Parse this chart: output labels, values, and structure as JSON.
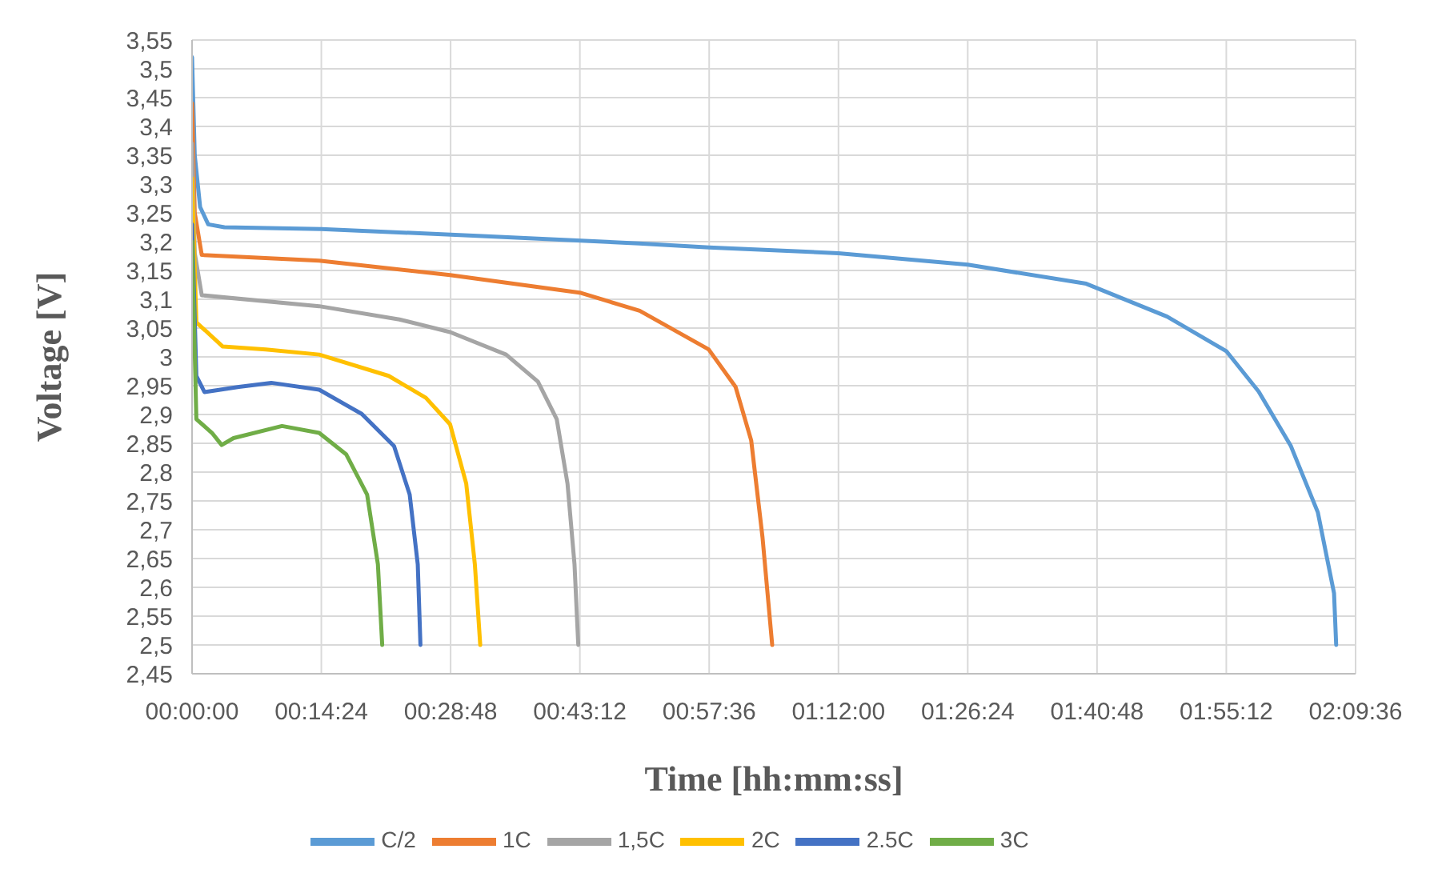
{
  "chart_data": {
    "type": "line",
    "xlabel": "Time [hh:mm:ss]",
    "ylabel": "Voltage [V]",
    "xlim": [
      0,
      2.16
    ],
    "xticks": [
      {
        "value": 0,
        "label": "00:00:00"
      },
      {
        "value": 0.24,
        "label": "00:14:24"
      },
      {
        "value": 0.48,
        "label": "00:28:48"
      },
      {
        "value": 0.72,
        "label": "00:43:12"
      },
      {
        "value": 0.96,
        "label": "00:57:36"
      },
      {
        "value": 1.2,
        "label": "01:12:00"
      },
      {
        "value": 1.44,
        "label": "01:26:24"
      },
      {
        "value": 1.68,
        "label": "01:40:48"
      },
      {
        "value": 1.92,
        "label": "01:55:12"
      },
      {
        "value": 2.16,
        "label": "02:09:36"
      }
    ],
    "ylim": [
      2.45,
      3.55
    ],
    "yticks": [
      {
        "value": 2.45,
        "label": "2,45"
      },
      {
        "value": 2.5,
        "label": "2,5"
      },
      {
        "value": 2.55,
        "label": "2,55"
      },
      {
        "value": 2.6,
        "label": "2,6"
      },
      {
        "value": 2.65,
        "label": "2,65"
      },
      {
        "value": 2.7,
        "label": "2,7"
      },
      {
        "value": 2.75,
        "label": "2,75"
      },
      {
        "value": 2.8,
        "label": "2,8"
      },
      {
        "value": 2.85,
        "label": "2,85"
      },
      {
        "value": 2.9,
        "label": "2,9"
      },
      {
        "value": 2.95,
        "label": "2,95"
      },
      {
        "value": 3,
        "label": "3"
      },
      {
        "value": 3.05,
        "label": "3,05"
      },
      {
        "value": 3.1,
        "label": "3,1"
      },
      {
        "value": 3.15,
        "label": "3,15"
      },
      {
        "value": 3.2,
        "label": "3,2"
      },
      {
        "value": 3.25,
        "label": "3,25"
      },
      {
        "value": 3.3,
        "label": "3,3"
      },
      {
        "value": 3.35,
        "label": "3,35"
      },
      {
        "value": 3.4,
        "label": "3,4"
      },
      {
        "value": 3.45,
        "label": "3,45"
      },
      {
        "value": 3.5,
        "label": "3,5"
      },
      {
        "value": 3.55,
        "label": "3,55"
      }
    ],
    "grid": true,
    "legend": "bottom",
    "marker": "none",
    "line_style": "solid",
    "series": [
      {
        "name": "C/2",
        "color": "#5b9bd5",
        "x": [
          0,
          0.005,
          0.015,
          0.03,
          0.06,
          0.24,
          0.53,
          0.83,
          0.96,
          1.2,
          1.44,
          1.66,
          1.81,
          1.92,
          1.98,
          2.04,
          2.09,
          2.12,
          2.124
        ],
        "values": [
          3.52,
          3.35,
          3.26,
          3.23,
          3.225,
          3.222,
          3.21,
          3.197,
          3.19,
          3.18,
          3.16,
          3.127,
          3.07,
          3.01,
          2.94,
          2.845,
          2.73,
          2.59,
          2.5
        ]
      },
      {
        "name": "1C",
        "color": "#ed7d31",
        "x": [
          0,
          0.005,
          0.018,
          0.236,
          0.479,
          0.722,
          0.831,
          0.959,
          1.009,
          1.038,
          1.059,
          1.077
        ],
        "values": [
          3.44,
          3.25,
          3.177,
          3.167,
          3.142,
          3.111,
          3.08,
          3.013,
          2.948,
          2.855,
          2.687,
          2.5
        ]
      },
      {
        "name": "1,5C",
        "color": "#a5a5a5",
        "x": [
          0,
          0.005,
          0.018,
          0.236,
          0.385,
          0.479,
          0.583,
          0.642,
          0.677,
          0.697,
          0.71,
          0.717
        ],
        "values": [
          3.37,
          3.18,
          3.107,
          3.088,
          3.065,
          3.043,
          3.004,
          2.957,
          2.892,
          2.78,
          2.64,
          2.5
        ]
      },
      {
        "name": "2C",
        "color": "#ffc000",
        "x": [
          0,
          0.008,
          0.057,
          0.137,
          0.236,
          0.365,
          0.434,
          0.479,
          0.509,
          0.525,
          0.535
        ],
        "values": [
          3.31,
          3.06,
          3.018,
          3.013,
          3.004,
          2.967,
          2.929,
          2.883,
          2.78,
          2.64,
          2.5
        ]
      },
      {
        "name": "2.5C",
        "color": "#4472c4",
        "x": [
          0,
          0.008,
          0.023,
          0.087,
          0.147,
          0.236,
          0.315,
          0.375,
          0.404,
          0.419,
          0.424
        ],
        "values": [
          3.23,
          2.967,
          2.939,
          2.948,
          2.955,
          2.943,
          2.901,
          2.845,
          2.761,
          2.64,
          2.5
        ]
      },
      {
        "name": "3C",
        "color": "#70ad47",
        "x": [
          0,
          0.008,
          0.037,
          0.055,
          0.077,
          0.167,
          0.236,
          0.286,
          0.325,
          0.345,
          0.353
        ],
        "values": [
          3.2,
          2.892,
          2.868,
          2.847,
          2.859,
          2.88,
          2.868,
          2.831,
          2.761,
          2.64,
          2.5
        ]
      }
    ]
  }
}
